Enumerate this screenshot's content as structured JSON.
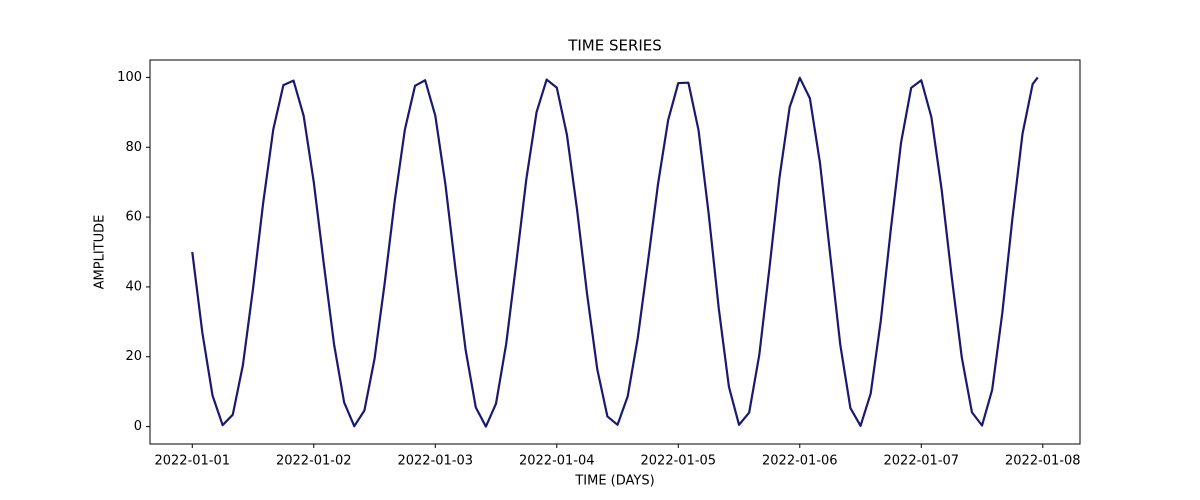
{
  "chart_data": {
    "type": "line",
    "title": "TIME SERIES",
    "xlabel": "TIME (DAYS)",
    "ylabel": "AMPLITUDE",
    "x": [
      "2022-01-01T00:00",
      "2022-01-01T02:00",
      "2022-01-01T04:00",
      "2022-01-01T06:00",
      "2022-01-01T08:00",
      "2022-01-01T10:00",
      "2022-01-01T12:00",
      "2022-01-01T14:00",
      "2022-01-01T16:00",
      "2022-01-01T18:00",
      "2022-01-01T20:00",
      "2022-01-01T22:00",
      "2022-01-02T00:00",
      "2022-01-02T02:00",
      "2022-01-02T04:00",
      "2022-01-02T06:00",
      "2022-01-02T08:00",
      "2022-01-02T10:00",
      "2022-01-02T12:00",
      "2022-01-02T14:00",
      "2022-01-02T16:00",
      "2022-01-02T18:00",
      "2022-01-02T20:00",
      "2022-01-02T22:00",
      "2022-01-03T00:00",
      "2022-01-03T02:00",
      "2022-01-03T04:00",
      "2022-01-03T06:00",
      "2022-01-03T08:00",
      "2022-01-03T10:00",
      "2022-01-03T12:00",
      "2022-01-03T14:00",
      "2022-01-03T16:00",
      "2022-01-03T18:00",
      "2022-01-03T20:00",
      "2022-01-03T22:00",
      "2022-01-04T00:00",
      "2022-01-04T02:00",
      "2022-01-04T04:00",
      "2022-01-04T06:00",
      "2022-01-04T08:00",
      "2022-01-04T10:00",
      "2022-01-04T12:00",
      "2022-01-04T14:00",
      "2022-01-04T16:00",
      "2022-01-04T18:00",
      "2022-01-04T20:00",
      "2022-01-04T22:00",
      "2022-01-05T00:00",
      "2022-01-05T02:00",
      "2022-01-05T04:00",
      "2022-01-05T06:00",
      "2022-01-05T08:00",
      "2022-01-05T10:00",
      "2022-01-05T12:00",
      "2022-01-05T14:00",
      "2022-01-05T16:00",
      "2022-01-05T18:00",
      "2022-01-05T20:00",
      "2022-01-05T22:00",
      "2022-01-06T00:00",
      "2022-01-06T02:00",
      "2022-01-06T04:00",
      "2022-01-06T06:00",
      "2022-01-06T08:00",
      "2022-01-06T10:00",
      "2022-01-06T12:00",
      "2022-01-06T14:00",
      "2022-01-06T16:00",
      "2022-01-06T18:00",
      "2022-01-06T20:00",
      "2022-01-06T22:00",
      "2022-01-07T00:00",
      "2022-01-07T02:00",
      "2022-01-07T04:00",
      "2022-01-07T06:00",
      "2022-01-07T08:00",
      "2022-01-07T10:00",
      "2022-01-07T12:00",
      "2022-01-07T14:00",
      "2022-01-07T16:00",
      "2022-01-07T18:00",
      "2022-01-07T20:00",
      "2022-01-07T22:00",
      "2022-01-07T23:00"
    ],
    "series": [
      {
        "name": "AMPLITUDE",
        "color": "#191970",
        "values": [
          50,
          26.8,
          8.9,
          0.4,
          3.4,
          17.6,
          39.5,
          64.0,
          85.1,
          97.8,
          99.1,
          89.0,
          70.0,
          46.4,
          23.6,
          6.9,
          0.1,
          4.6,
          19.4,
          41.0,
          64.8,
          85.1,
          97.6,
          99.2,
          89.1,
          69.4,
          45.0,
          21.9,
          5.5,
          0.0,
          6.6,
          23.6,
          46.9,
          71.0,
          90.0,
          99.4,
          97.1,
          83.6,
          62.2,
          37.8,
          16.4,
          2.9,
          0.5,
          8.6,
          25.4,
          47.1,
          69.5,
          87.8,
          98.4,
          98.5,
          84.9,
          61.0,
          33.8,
          11.4,
          0.5,
          4.0,
          20.5,
          45.3,
          71.4,
          91.5,
          99.9,
          94.0,
          75.4,
          49.3,
          23.4,
          5.3,
          0.2,
          9.4,
          30.3,
          56.7,
          81.3,
          97.0,
          99.2,
          88.6,
          68.1,
          43.0,
          19.8,
          4.1,
          0.3,
          10.5,
          32.5,
          59.6,
          83.9,
          98.1,
          100
        ]
      }
    ],
    "xlim": [
      "2021-12-31T15:39",
      "2022-01-08T07:21"
    ],
    "xticks": [
      "2022-01-01",
      "2022-01-02",
      "2022-01-03",
      "2022-01-04",
      "2022-01-05",
      "2022-01-06",
      "2022-01-07",
      "2022-01-08"
    ],
    "ylim": [
      -5,
      105
    ],
    "yticks": [
      0,
      20,
      40,
      60,
      80,
      100
    ],
    "grid": false
  }
}
